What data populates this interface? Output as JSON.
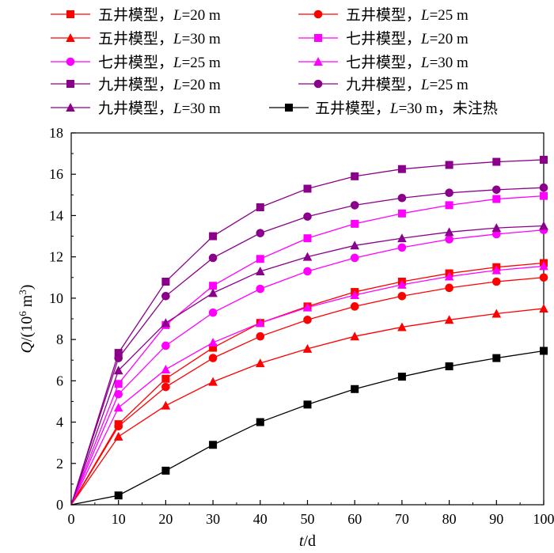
{
  "chart_data": {
    "type": "line",
    "xlabel": {
      "italic": "t",
      "rest": "/d"
    },
    "ylabel": {
      "italic": "Q",
      "rest": "/(10",
      "sup1": "6",
      "mid": " m",
      "sup2": "3",
      "end": ")"
    },
    "xlim": [
      0,
      100
    ],
    "ylim": [
      0,
      18
    ],
    "xticks": [
      0,
      10,
      20,
      30,
      40,
      50,
      60,
      70,
      80,
      90,
      100
    ],
    "yticks": [
      0,
      2,
      4,
      6,
      8,
      10,
      12,
      14,
      16,
      18
    ],
    "x": [
      0,
      10,
      20,
      30,
      40,
      50,
      60,
      70,
      80,
      90,
      100
    ],
    "series": [
      {
        "name": "五井模型，L=20 m",
        "prefix": "五井模型，",
        "var": "L",
        "suffix": "=20 m",
        "color": "#ff0000",
        "marker": "square",
        "values": [
          0,
          3.9,
          6.1,
          7.6,
          8.8,
          9.6,
          10.3,
          10.8,
          11.2,
          11.5,
          11.7
        ]
      },
      {
        "name": "五井模型，L=25 m",
        "prefix": "五井模型，",
        "var": "L",
        "suffix": "=25 m",
        "color": "#ff0000",
        "marker": "circle",
        "values": [
          0,
          3.8,
          5.7,
          7.1,
          8.15,
          8.95,
          9.6,
          10.1,
          10.5,
          10.8,
          11.0
        ]
      },
      {
        "name": "五井模型，L=30 m",
        "prefix": "五井模型，",
        "var": "L",
        "suffix": "=30 m",
        "color": "#ff0000",
        "marker": "triangle",
        "values": [
          0,
          3.3,
          4.8,
          5.95,
          6.85,
          7.55,
          8.15,
          8.6,
          8.95,
          9.25,
          9.5
        ]
      },
      {
        "name": "七井模型，L=20 m",
        "prefix": "七井模型，",
        "var": "L",
        "suffix": "=20 m",
        "color": "#ff00ff",
        "marker": "square",
        "values": [
          0,
          5.85,
          8.7,
          10.6,
          11.9,
          12.9,
          13.6,
          14.1,
          14.5,
          14.8,
          14.95
        ]
      },
      {
        "name": "七井模型，L=25 m",
        "prefix": "七井模型，",
        "var": "L",
        "suffix": "=25 m",
        "color": "#ff00ff",
        "marker": "circle",
        "values": [
          0,
          5.35,
          7.7,
          9.3,
          10.45,
          11.3,
          11.95,
          12.45,
          12.85,
          13.1,
          13.3
        ]
      },
      {
        "name": "七井模型，L=30 m",
        "prefix": "七井模型，",
        "var": "L",
        "suffix": "=30 m",
        "color": "#ff00ff",
        "marker": "triangle",
        "values": [
          0,
          4.7,
          6.55,
          7.85,
          8.8,
          9.55,
          10.15,
          10.65,
          11.05,
          11.35,
          11.55
        ]
      },
      {
        "name": "九井模型，L=20 m",
        "prefix": "九井模型，",
        "var": "L",
        "suffix": "=20 m",
        "color": "#8b008b",
        "marker": "square",
        "values": [
          0,
          7.35,
          10.8,
          13.0,
          14.4,
          15.3,
          15.9,
          16.25,
          16.45,
          16.6,
          16.7
        ]
      },
      {
        "name": "九井模型，L=25 m",
        "prefix": "九井模型，",
        "var": "L",
        "suffix": "=25 m",
        "color": "#8b008b",
        "marker": "circle",
        "values": [
          0,
          7.1,
          10.1,
          11.95,
          13.15,
          13.95,
          14.5,
          14.85,
          15.1,
          15.25,
          15.35
        ]
      },
      {
        "name": "九井模型，L=30 m",
        "prefix": "九井模型，",
        "var": "L",
        "suffix": "=30 m",
        "color": "#8b008b",
        "marker": "triangle",
        "values": [
          0,
          6.5,
          8.8,
          10.25,
          11.3,
          12.0,
          12.55,
          12.9,
          13.2,
          13.4,
          13.5
        ]
      },
      {
        "name": "五井模型，L=30 m，未注热",
        "prefix": "五井模型，",
        "var": "L",
        "suffix": "=30 m，未注热",
        "color": "#000000",
        "marker": "square",
        "values": [
          0,
          0.45,
          1.65,
          2.9,
          4.0,
          4.85,
          5.6,
          6.2,
          6.7,
          7.1,
          7.45
        ]
      }
    ]
  }
}
